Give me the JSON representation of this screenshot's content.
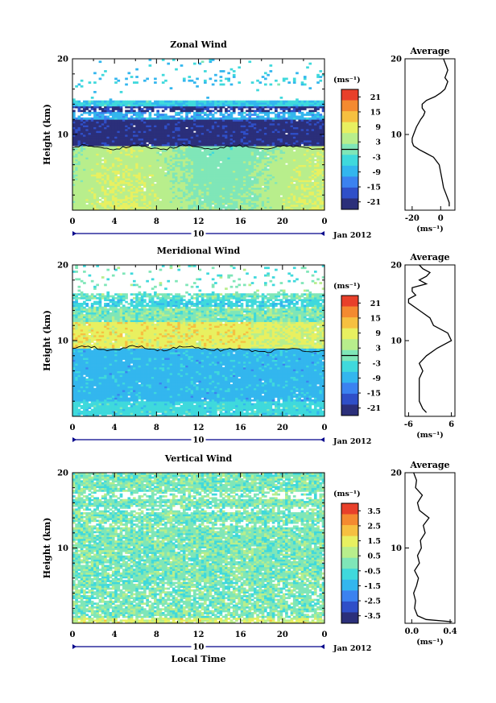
{
  "colors": {
    "scale": [
      "#2b2f7a",
      "#2f4fc8",
      "#3b82f0",
      "#33b6ee",
      "#3fd9dc",
      "#7fe6b8",
      "#b8ee8c",
      "#e8f060",
      "#f6c040",
      "#f48a30",
      "#e8402a"
    ],
    "vscale": [
      "#2b2f7a",
      "#2f4fc8",
      "#3b82f0",
      "#33b6ee",
      "#3fd9dc",
      "#7fe6b8",
      "#b8ee8c",
      "#e8f060",
      "#f6c040",
      "#f48a30",
      "#e8402a"
    ],
    "line": "#000000",
    "axis_blue": "#00008b"
  },
  "shared": {
    "x_ticks": [
      "0",
      "4",
      "8",
      "12",
      "16",
      "20",
      "0"
    ],
    "date_day": "10",
    "date_label": "Jan 2012",
    "ylabel": "Height (km)",
    "y_ticks": [
      "10",
      "20"
    ],
    "unit_label": "(ms⁻¹)",
    "avg_title": "Average",
    "xlabel": "Local Time"
  },
  "chart_data": [
    {
      "type": "heatmap",
      "title": "Zonal Wind",
      "xlabel": "Local Time",
      "ylabel": "Height (km)",
      "xlim": [
        0,
        24
      ],
      "ylim": [
        0,
        20
      ],
      "colorbar": {
        "ticks": [
          "21",
          "15",
          "9",
          "3",
          "-3",
          "-9",
          "-15",
          "-21"
        ],
        "range": [
          -24,
          24
        ]
      },
      "profile": {
        "title": "Average",
        "xlabel": "(ms⁻¹)",
        "x_ticks": [
          "-20",
          "0"
        ],
        "xlim": [
          -25,
          10
        ],
        "height_km": [
          0.5,
          1,
          2,
          3,
          4,
          5,
          6,
          7,
          7.5,
          8,
          8.5,
          9,
          9.5,
          10,
          11,
          12,
          12.5,
          13,
          13.5,
          14,
          14.5,
          15,
          15.5,
          16,
          16.5,
          17,
          17.5,
          18,
          18.5,
          19,
          19.5,
          20
        ],
        "values": [
          6,
          6,
          4,
          2,
          1,
          0,
          -1,
          -5,
          -10,
          -15,
          -19,
          -20,
          -20,
          -19,
          -17,
          -14,
          -12,
          -11,
          -13,
          -13,
          -10,
          -4,
          0,
          3,
          4,
          5,
          3,
          4,
          5,
          4,
          3,
          2
        ]
      }
    },
    {
      "type": "heatmap",
      "title": "Meridional Wind",
      "xlabel": "Local Time",
      "ylabel": "Height (km)",
      "xlim": [
        0,
        24
      ],
      "ylim": [
        0,
        20
      ],
      "colorbar": {
        "ticks": [
          "21",
          "15",
          "9",
          "3",
          "-3",
          "-9",
          "-15",
          "-21"
        ],
        "range": [
          -24,
          24
        ]
      },
      "profile": {
        "title": "Average",
        "xlabel": "(ms⁻¹)",
        "x_ticks": [
          "-6",
          "6"
        ],
        "xlim": [
          -7,
          7
        ],
        "height_km": [
          0.5,
          1,
          2,
          3,
          4,
          5,
          6,
          7,
          8,
          9,
          10,
          11,
          12,
          13,
          14,
          15,
          15.5,
          16,
          16.5,
          17,
          17.5,
          18,
          18.5,
          19,
          19.5,
          20
        ],
        "values": [
          -1,
          -2,
          -3,
          -3,
          -3,
          -3,
          -2,
          -3,
          -1,
          2,
          6,
          5,
          1,
          0,
          -3,
          -6,
          -6,
          -4,
          -5,
          -5,
          -1,
          -3,
          -1,
          0,
          -2,
          -3
        ]
      }
    },
    {
      "type": "heatmap",
      "title": "Vertical Wind",
      "xlabel": "Local Time",
      "ylabel": "Height (km)",
      "xlim": [
        0,
        24
      ],
      "ylim": [
        0,
        20
      ],
      "colorbar": {
        "ticks": [
          "3.5",
          "2.5",
          "1.5",
          "0.5",
          "-0.5",
          "-1.5",
          "-2.5",
          "-3.5"
        ],
        "range": [
          -4,
          4
        ]
      },
      "profile": {
        "title": "Average",
        "xlabel": "(ms⁻¹)",
        "x_ticks": [
          "0.0",
          "0.4"
        ],
        "xlim": [
          -0.07,
          0.45
        ],
        "height_km": [
          0.2,
          0.5,
          1,
          2,
          3,
          4,
          5,
          6,
          7,
          8,
          9,
          10,
          11,
          12,
          13,
          14,
          15,
          16,
          17,
          18,
          19,
          20
        ],
        "values": [
          0.42,
          0.15,
          0.06,
          0.03,
          0.04,
          0.02,
          0.05,
          0.07,
          0.03,
          0.08,
          0.06,
          0.1,
          0.09,
          0.14,
          0.12,
          0.18,
          0.08,
          0.06,
          0.11,
          0.04,
          0.05,
          0.02
        ]
      }
    }
  ]
}
